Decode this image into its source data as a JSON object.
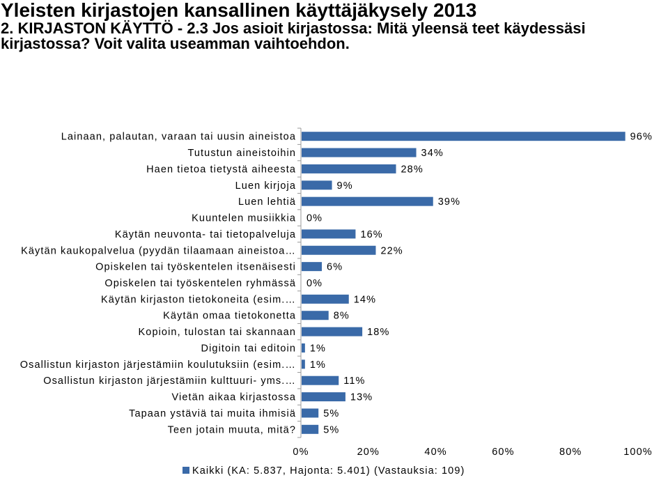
{
  "header": {
    "title": "Yleisten kirjastojen kansallinen käyttäjäkysely 2013",
    "subtitle": "2. KIRJASTON KÄYTTÖ - 2.3 Jos asioit kirjastossa: Mitä yleensä teet käydessäsi kirjastossa? Voit valita useamman vaihtoehdon."
  },
  "chart_data": {
    "type": "bar",
    "orientation": "horizontal",
    "categories": [
      "Lainaan, palautan, varaan tai uusin aineistoa",
      "Tutustun aineistoihin",
      "Haen tietoa tietystä aiheesta",
      "Luen kirjoja",
      "Luen lehtiä",
      "Kuuntelen musiikkia",
      "Käytän neuvonta- tai tietopalveluja",
      "Käytän kaukopalvelua (pyydän tilaamaan aineistoa…",
      "Opiskelen tai työskentelen itsenäisesti",
      "Opiskelen tai työskentelen ryhmässä",
      "Käytän kirjaston tietokoneita (esim.…",
      "Käytän omaa tietokonetta",
      "Kopioin, tulostan tai skannaan",
      "Digitoin tai editoin",
      "Osallistun kirjaston järjestämiin koulutuksiin (esim.…",
      "Osallistun kirjaston järjestämiin kulttuuri- yms.…",
      "Vietän aikaa kirjastossa",
      "Tapaan ystäviä tai muita ihmisiä",
      "Teen jotain muuta, mitä?"
    ],
    "series": [
      {
        "name": "Kaikki (KA: 5.837, Hajonta: 5.401) (Vastauksia: 109)",
        "values": [
          96,
          34,
          28,
          9,
          39,
          0,
          16,
          22,
          6,
          0,
          14,
          8,
          18,
          1,
          1,
          11,
          13,
          5,
          5
        ],
        "labels": [
          "96%",
          "34%",
          "28%",
          "9%",
          "39%",
          "0%",
          "16%",
          "22%",
          "6%",
          "0%",
          "14%",
          "8%",
          "18%",
          "1%",
          "1%",
          "11%",
          "13%",
          "5%",
          "5%"
        ],
        "color": "#3A6AA8"
      }
    ],
    "xlim": [
      0,
      100
    ],
    "xticks": [
      "0%",
      "20%",
      "40%",
      "60%",
      "80%",
      "100%"
    ],
    "xtick_values": [
      0,
      20,
      40,
      60,
      80,
      100
    ],
    "grid": false,
    "legend_position": "bottom-left",
    "legend_label": "Kaikki (KA: 5.837, Hajonta: 5.401) (Vastauksia: 109)"
  }
}
